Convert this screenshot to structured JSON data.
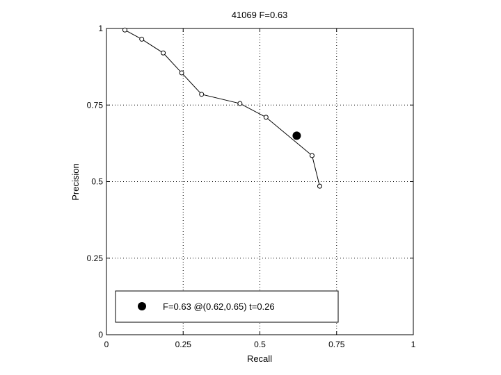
{
  "chart_data": {
    "type": "line",
    "title": "41069 F=0.63",
    "xlabel": "Recall",
    "ylabel": "Precision",
    "xlim": [
      0,
      1
    ],
    "ylim": [
      0,
      1
    ],
    "grid": true,
    "x_ticks": [
      0,
      0.25,
      0.5,
      0.75,
      1
    ],
    "y_ticks": [
      0,
      0.25,
      0.5,
      0.75,
      1
    ],
    "x_tick_labels": [
      "0",
      "0.25",
      "0.5",
      "0.75",
      "1"
    ],
    "y_tick_labels": [
      "0",
      "0.25",
      "0.5",
      "0.75",
      "1"
    ],
    "series": [
      {
        "marker": "open-circle",
        "color": "#000000",
        "x": [
          0.06,
          0.115,
          0.185,
          0.245,
          0.31,
          0.435,
          0.52,
          0.67,
          0.695
        ],
        "y": [
          0.995,
          0.965,
          0.92,
          0.855,
          0.785,
          0.755,
          0.71,
          0.585,
          0.485
        ]
      }
    ],
    "highlight_point": {
      "x": 0.62,
      "y": 0.65,
      "marker": "filled-circle",
      "color": "#000000"
    },
    "legend": {
      "placement": "bottom-left",
      "entries": [
        "F=0.63 @(0.62,0.65) t=0.26"
      ]
    }
  }
}
